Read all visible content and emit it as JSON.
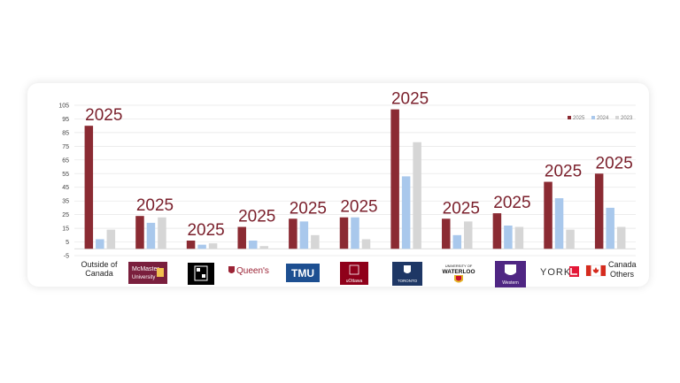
{
  "chart_data": {
    "type": "bar",
    "title": "",
    "xlabel": "",
    "ylabel": "",
    "ylim": [
      -5,
      105
    ],
    "yticks": [
      -5,
      5,
      15,
      25,
      35,
      45,
      55,
      65,
      75,
      85,
      95,
      105
    ],
    "grid": true,
    "legend_position": "top-right",
    "categories": [
      "Outside of Canada",
      "McMaster University",
      "OCAD U",
      "Queen's University",
      "TMU",
      "uOttawa",
      "University of Toronto",
      "University of Waterloo",
      "Western",
      "York U",
      "Canada Others"
    ],
    "series": [
      {
        "name": "2025",
        "color": "#8b2b33",
        "values": [
          90,
          24,
          6,
          16,
          22,
          23,
          102,
          22,
          26,
          49,
          55
        ]
      },
      {
        "name": "2024",
        "color": "#a9c8ec",
        "values": [
          7,
          19,
          3,
          6,
          20,
          23,
          53,
          10,
          17,
          37,
          30
        ]
      },
      {
        "name": "2023",
        "color": "#d6d6d6",
        "values": [
          14,
          23,
          4,
          2,
          10,
          7,
          78,
          20,
          16,
          14,
          16
        ]
      }
    ],
    "annotations": [
      "2025",
      "2025",
      "2025",
      "2025",
      "2025",
      "2025",
      "2025",
      "2025",
      "2025",
      "2025",
      "2025"
    ]
  },
  "logos": {
    "outside": [
      "Outside of",
      "Canada"
    ],
    "mcmaster": [
      "McMaster",
      "University"
    ],
    "queens": "Queen's",
    "tmu": "TMU",
    "uottawa": "uOttawa",
    "toronto": "TORONTO",
    "waterloo": [
      "UNIVERSITY OF",
      "WATERLOO"
    ],
    "western": "Western",
    "york": "YORK",
    "canada": [
      "Canada",
      "Others"
    ]
  }
}
